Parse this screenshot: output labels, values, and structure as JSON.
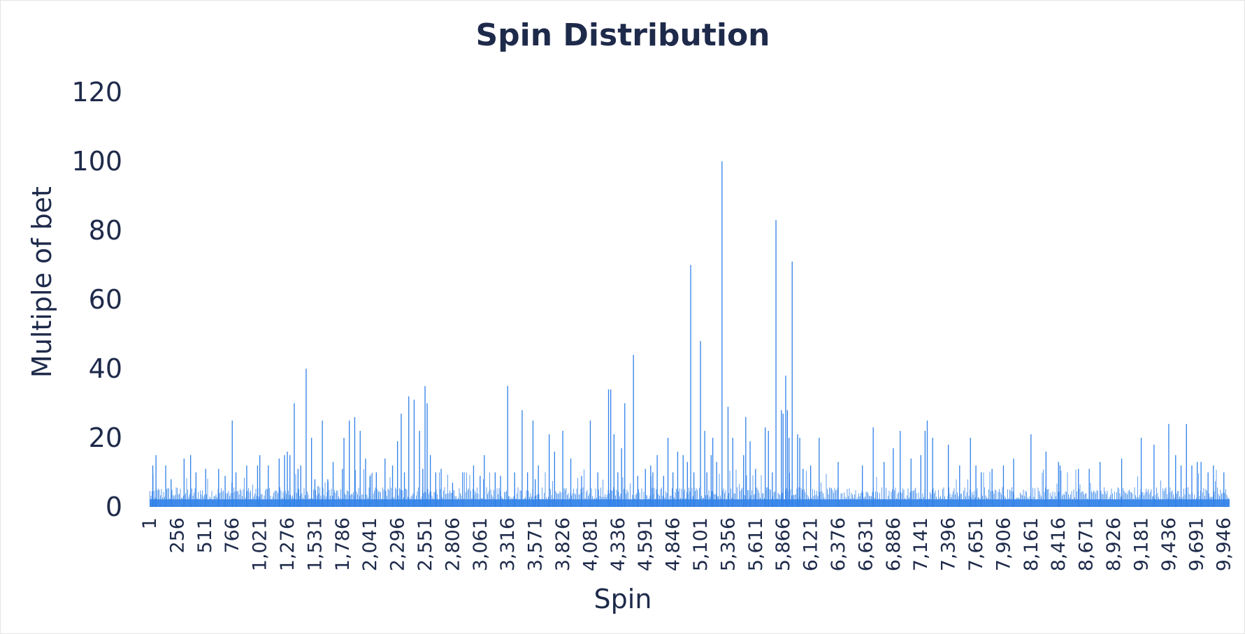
{
  "chart_data": {
    "type": "bar",
    "title": "Spin Distribution",
    "xlabel": "Spin",
    "ylabel": "Multiple of bet",
    "ylim": [
      0,
      120
    ],
    "y_ticks": [
      "0",
      "20",
      "40",
      "60",
      "80",
      "100",
      "120"
    ],
    "x_range": [
      1,
      10000
    ],
    "x_ticks": [
      "1",
      "256",
      "511",
      "766",
      "1,021",
      "1,276",
      "1,531",
      "1,786",
      "2,041",
      "2,296",
      "2,551",
      "2,806",
      "3,061",
      "3,316",
      "3,571",
      "3,826",
      "4,081",
      "4,336",
      "4,591",
      "4,846",
      "5,101",
      "5,356",
      "5,611",
      "5,866",
      "6,121",
      "6,376",
      "6,631",
      "6,886",
      "7,141",
      "7,396",
      "7,651",
      "7,906",
      "8,161",
      "8,416",
      "8,671",
      "8,926",
      "9,181",
      "9,436",
      "9,691",
      "9,946"
    ],
    "grid": false,
    "legend": "none",
    "bar_color": "#2f80e8",
    "series": [
      {
        "x": [
          30,
          60,
          150,
          200,
          320,
          380,
          430,
          520,
          640,
          700,
          766,
          800,
          900,
          1000,
          1021,
          1100,
          1200,
          1250,
          1276,
          1300,
          1340,
          1375,
          1400,
          1450,
          1500,
          1531,
          1560,
          1600,
          1650,
          1700,
          1786,
          1800,
          1850,
          1900,
          1950,
          2000,
          2041,
          2100,
          2180,
          2250,
          2296,
          2330,
          2360,
          2400,
          2450,
          2500,
          2530,
          2551,
          2570,
          2600,
          2650,
          2700,
          2806,
          2900,
          3000,
          3061,
          3100,
          3200,
          3250,
          3316,
          3380,
          3450,
          3500,
          3550,
          3571,
          3600,
          3700,
          3750,
          3826,
          3900,
          4000,
          4081,
          4150,
          4250,
          4270,
          4300,
          4336,
          4370,
          4400,
          4480,
          4520,
          4591,
          4640,
          4660,
          4700,
          4760,
          4800,
          4846,
          4890,
          4940,
          4980,
          5010,
          5040,
          5101,
          5140,
          5160,
          5200,
          5215,
          5250,
          5300,
          5356,
          5400,
          5500,
          5520,
          5560,
          5611,
          5700,
          5730,
          5766,
          5800,
          5850,
          5866,
          5890,
          5905,
          5920,
          5950,
          6000,
          6020,
          6050,
          6121,
          6200,
          6376,
          6600,
          6700,
          6800,
          6886,
          6950,
          7050,
          7141,
          7180,
          7200,
          7250,
          7396,
          7500,
          7600,
          7651,
          7700,
          7800,
          7906,
          8000,
          8161,
          8300,
          8416,
          8430,
          8600,
          8700,
          8800,
          9000,
          9181,
          9300,
          9436,
          9500,
          9550,
          9600,
          9650,
          9700,
          9735,
          9800,
          9850,
          9946
        ],
        "values": [
          12,
          15,
          12,
          8,
          14,
          15,
          10,
          11,
          11,
          9,
          25,
          10,
          12,
          12,
          15,
          12,
          14,
          15,
          16,
          15,
          30,
          11,
          12,
          40,
          20,
          8,
          6,
          25,
          8,
          13,
          11,
          20,
          25,
          26,
          22,
          14,
          9,
          10,
          14,
          12,
          19,
          27,
          10,
          32,
          31,
          22,
          11,
          35,
          30,
          15,
          10,
          11,
          7,
          10,
          12,
          9,
          15,
          10,
          9,
          35,
          10,
          28,
          10,
          25,
          8,
          12,
          21,
          16,
          22,
          14,
          9,
          25,
          10,
          34,
          34,
          21,
          10,
          17,
          30,
          44,
          9,
          11,
          12,
          10,
          15,
          9,
          20,
          10,
          16,
          15,
          13,
          70,
          10,
          48,
          22,
          10,
          15,
          20,
          13,
          100,
          29,
          20,
          15,
          26,
          19,
          11,
          23,
          22,
          10,
          83,
          28,
          27,
          38,
          28,
          20,
          71,
          21,
          20,
          11,
          12,
          20,
          13,
          12,
          23,
          13,
          17,
          22,
          14,
          15,
          22,
          25,
          20,
          18,
          12,
          20,
          12,
          10,
          11,
          12,
          14,
          21,
          16,
          13,
          12,
          11,
          11,
          13,
          14,
          20,
          18,
          24,
          15,
          12,
          24,
          12,
          13,
          13,
          10,
          12,
          10
        ]
      }
    ]
  }
}
